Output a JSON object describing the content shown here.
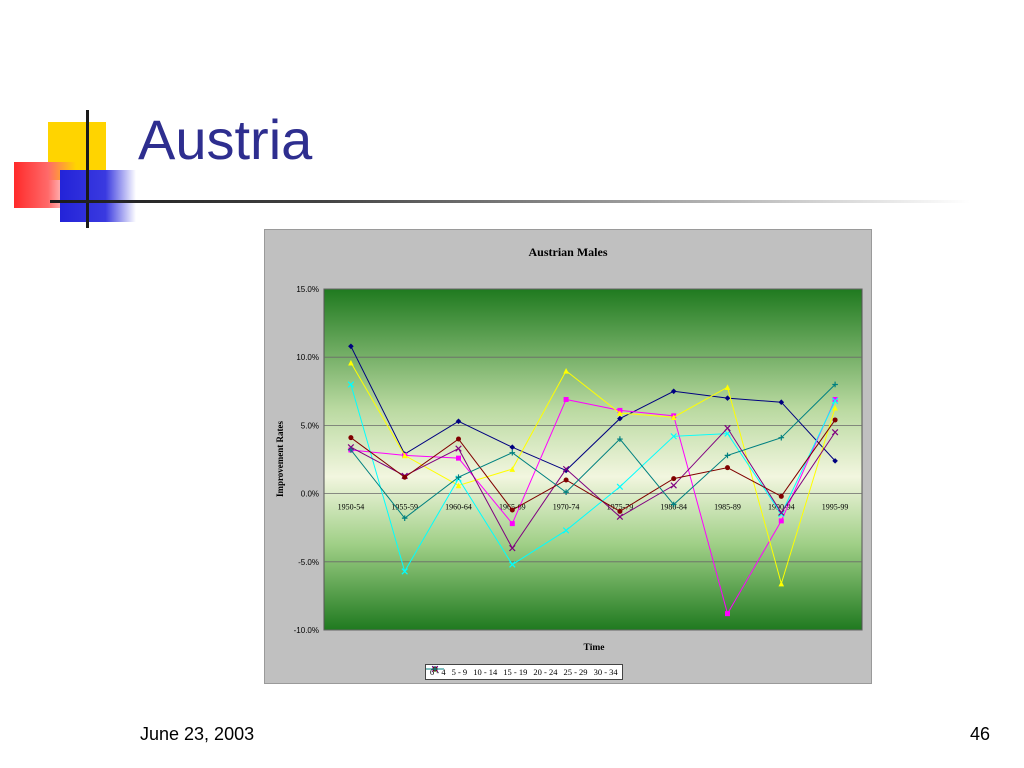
{
  "slide": {
    "title": "Austria",
    "date": "June 23, 2003",
    "page_number": "46"
  },
  "chart_data": {
    "type": "line",
    "title": "Austrian Males",
    "xlabel": "Time",
    "ylabel": "Improvement Rates",
    "ylim": [
      -10,
      15
    ],
    "yticks": [
      "15.0%",
      "10.0%",
      "5.0%",
      "0.0%",
      "-5.0%",
      "-10.0%"
    ],
    "categories": [
      "1950-54",
      "1955-59",
      "1960-64",
      "1965-69",
      "1970-74",
      "1975-79",
      "1980-84",
      "1985-89",
      "1990-94",
      "1995-99"
    ],
    "grid": true,
    "legend": "bottom",
    "series": [
      {
        "name": "0 - 4",
        "color": "#000080",
        "marker": "diamond",
        "values": [
          10.8,
          2.9,
          5.3,
          3.4,
          1.7,
          5.5,
          7.5,
          7.0,
          6.7,
          2.4
        ]
      },
      {
        "name": "5 - 9",
        "color": "#ff00ff",
        "marker": "square",
        "values": [
          3.2,
          2.8,
          2.6,
          -2.2,
          6.9,
          6.1,
          5.7,
          -8.8,
          -2.0,
          6.9
        ]
      },
      {
        "name": "10 - 14",
        "color": "#ffff00",
        "marker": "triangle",
        "values": [
          9.6,
          2.8,
          0.6,
          1.8,
          9.0,
          5.9,
          5.6,
          7.8,
          -6.6,
          6.3
        ]
      },
      {
        "name": "15 - 19",
        "color": "#00ffff",
        "marker": "x",
        "values": [
          8.0,
          -5.7,
          1.1,
          -5.2,
          -2.7,
          0.5,
          4.2,
          4.4,
          -1.5,
          6.8
        ]
      },
      {
        "name": "20 - 24",
        "color": "#800080",
        "marker": "x",
        "values": [
          3.4,
          1.3,
          3.3,
          -4.0,
          1.8,
          -1.7,
          0.6,
          4.8,
          -1.4,
          4.5
        ]
      },
      {
        "name": "25 - 29",
        "color": "#800000",
        "marker": "circle",
        "values": [
          4.1,
          1.2,
          4.0,
          -1.2,
          1.0,
          -1.3,
          1.1,
          1.9,
          -0.2,
          5.4
        ]
      },
      {
        "name": "30 - 34",
        "color": "#008080",
        "marker": "plus",
        "values": [
          3.2,
          -1.8,
          1.2,
          3.0,
          0.1,
          4.0,
          -0.8,
          2.8,
          4.1,
          8.0
        ]
      }
    ]
  }
}
